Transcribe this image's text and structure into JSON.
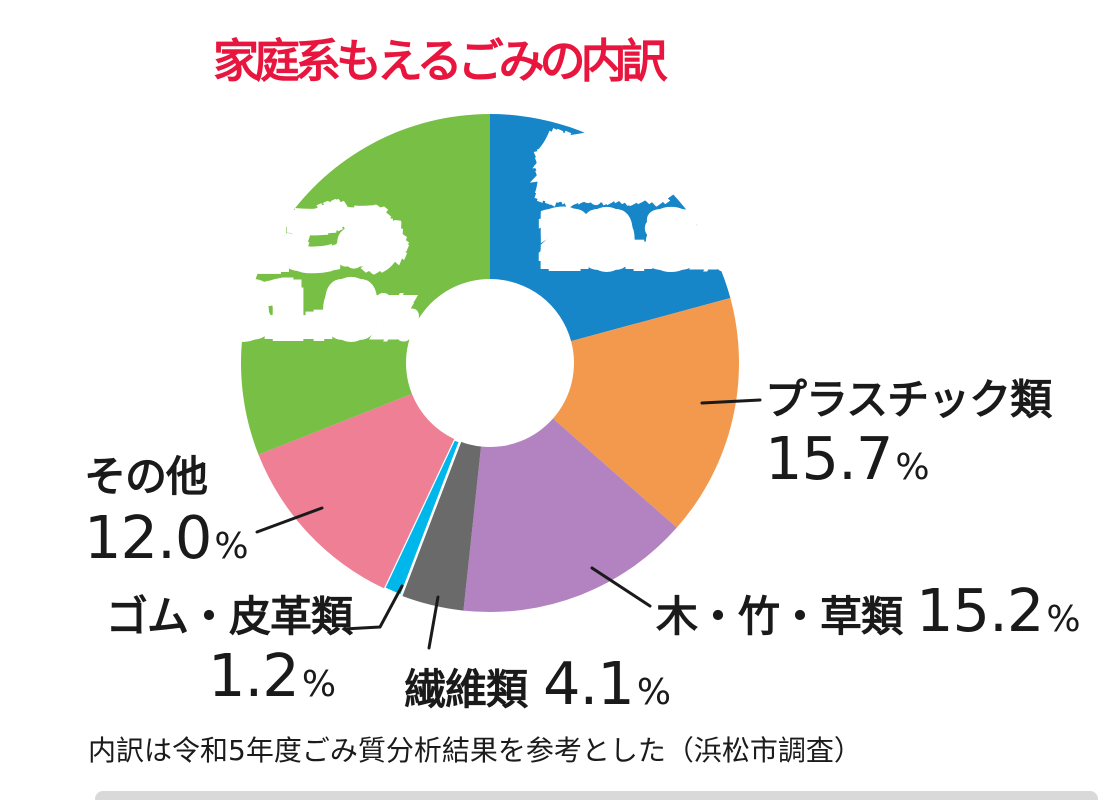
{
  "title": {
    "text": "家庭系もえるごみの内訳",
    "color": "#E8163E"
  },
  "chart_data": {
    "type": "pie",
    "subtype": "donut",
    "title": "家庭系もえるごみの内訳",
    "unit": "%",
    "direction": "clockwise",
    "start_angle_deg": 0,
    "total": 100.0,
    "segments": [
      {
        "id": "paper",
        "label": "紙類",
        "value": 20.8,
        "pct": "20.8",
        "color": "#1786C8",
        "label_placement": "inside-white"
      },
      {
        "id": "plastics",
        "label": "プラスチック類",
        "value": 15.7,
        "pct": "15.7",
        "color": "#F2994E",
        "label_placement": "outside-right"
      },
      {
        "id": "wood-bamboo-grass",
        "label": "木・竹・草類",
        "value": 15.2,
        "pct": "15.2",
        "color": "#B282C1",
        "label_placement": "outside-bottom-right"
      },
      {
        "id": "textiles",
        "label": "繊維類",
        "value": 4.1,
        "pct": "4.1",
        "color": "#6A6A6A",
        "label_placement": "outside-bottom"
      },
      {
        "id": "rubber-leather",
        "label": "ゴム・皮革類",
        "value": 1.2,
        "pct": "1.2",
        "color": "#00B7EB",
        "label_placement": "outside-bottom-left"
      },
      {
        "id": "other",
        "label": "その他",
        "value": 12.0,
        "pct": "12.0",
        "color": "#EF7F95",
        "label_placement": "outside-left"
      },
      {
        "id": "food-waste",
        "label": "生ごみ",
        "value": 31.0,
        "pct": "31.0",
        "color": "#77BF45",
        "label_placement": "inside-white"
      }
    ]
  },
  "footer": {
    "text": "内訳は令和5年度ごみ質分析結果を参考とした（浜松市調査）"
  }
}
